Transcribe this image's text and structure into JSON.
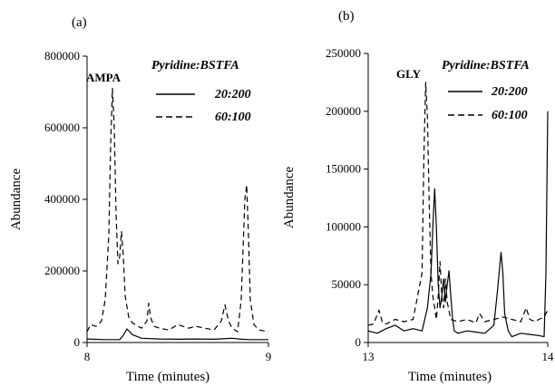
{
  "chart_data": [
    {
      "type": "line",
      "panel_label": "(a)",
      "xlabel": "Time (minutes)",
      "ylabel": "Abundance",
      "xlim": [
        8,
        9
      ],
      "ylim": [
        0,
        800000
      ],
      "x_ticks": [
        "8",
        "9"
      ],
      "y_ticks": [
        "0",
        "200000",
        "400000",
        "600000",
        "800000"
      ],
      "annotation": "AMPA",
      "legend_title": "Pyridine:BSTFA",
      "series": [
        {
          "name": "20:200",
          "style": "solid",
          "x": [
            8.0,
            8.1,
            8.18,
            8.2,
            8.22,
            8.25,
            8.3,
            8.4,
            8.5,
            8.6,
            8.7,
            8.8,
            8.85,
            8.9,
            9.0
          ],
          "y": [
            10000,
            8000,
            8000,
            20000,
            38000,
            22000,
            12000,
            10000,
            9000,
            10000,
            9000,
            12000,
            9000,
            8000,
            8000
          ]
        },
        {
          "name": "60:100",
          "style": "dashed",
          "x": [
            8.0,
            8.02,
            8.05,
            8.08,
            8.1,
            8.12,
            8.13,
            8.14,
            8.15,
            8.16,
            8.17,
            8.18,
            8.19,
            8.2,
            8.21,
            8.23,
            8.25,
            8.3,
            8.33,
            8.34,
            8.35,
            8.37,
            8.4,
            8.45,
            8.5,
            8.53,
            8.56,
            8.6,
            8.65,
            8.7,
            8.74,
            8.76,
            8.78,
            8.8,
            8.83,
            8.85,
            8.86,
            8.87,
            8.88,
            8.89,
            8.9,
            8.92,
            8.95,
            9.0
          ],
          "y": [
            30000,
            50000,
            45000,
            60000,
            120000,
            300000,
            550000,
            710000,
            600000,
            360000,
            220000,
            240000,
            310000,
            240000,
            130000,
            70000,
            55000,
            40000,
            60000,
            110000,
            70000,
            45000,
            40000,
            35000,
            50000,
            45000,
            40000,
            45000,
            40000,
            35000,
            60000,
            105000,
            60000,
            40000,
            30000,
            120000,
            260000,
            400000,
            440000,
            300000,
            120000,
            50000,
            35000,
            30000
          ]
        }
      ]
    },
    {
      "type": "line",
      "panel_label": "(b)",
      "xlabel": "Time (minutes)",
      "ylabel": "Abundance",
      "xlim": [
        13,
        14
      ],
      "ylim": [
        0,
        250000
      ],
      "x_ticks": [
        "13",
        "14"
      ],
      "y_ticks": [
        "0",
        "50000",
        "100000",
        "150000",
        "200000",
        "250000"
      ],
      "annotation": "GLY",
      "legend_title": "Pyridine:BSTFA",
      "series": [
        {
          "name": "20:200",
          "style": "solid",
          "x": [
            13.0,
            13.05,
            13.1,
            13.15,
            13.2,
            13.25,
            13.3,
            13.33,
            13.35,
            13.36,
            13.37,
            13.38,
            13.39,
            13.4,
            13.41,
            13.42,
            13.43,
            13.44,
            13.45,
            13.46,
            13.47,
            13.48,
            13.5,
            13.55,
            13.6,
            13.65,
            13.7,
            13.72,
            13.74,
            13.75,
            13.76,
            13.78,
            13.8,
            13.85,
            13.9,
            13.95,
            13.98,
            13.99,
            14.0
          ],
          "y": [
            10000,
            8000,
            12000,
            15000,
            10000,
            12000,
            10000,
            30000,
            60000,
            100000,
            133000,
            100000,
            50000,
            30000,
            40000,
            55000,
            35000,
            50000,
            62000,
            40000,
            20000,
            10000,
            8000,
            10000,
            9000,
            8000,
            15000,
            45000,
            78000,
            60000,
            25000,
            10000,
            5000,
            8000,
            7000,
            6000,
            5000,
            60000,
            200000
          ]
        },
        {
          "name": "60:100",
          "style": "dashed",
          "x": [
            13.0,
            13.03,
            13.06,
            13.08,
            13.1,
            13.15,
            13.2,
            13.25,
            13.3,
            13.31,
            13.32,
            13.33,
            13.34,
            13.35,
            13.36,
            13.37,
            13.38,
            13.39,
            13.4,
            13.41,
            13.42,
            13.43,
            13.44,
            13.46,
            13.5,
            13.55,
            13.6,
            13.62,
            13.65,
            13.7,
            13.75,
            13.8,
            13.85,
            13.88,
            13.9,
            13.93,
            13.95,
            13.98,
            14.0
          ],
          "y": [
            15000,
            16000,
            28000,
            17000,
            16000,
            20000,
            18000,
            20000,
            60000,
            160000,
            225000,
            195000,
            120000,
            60000,
            40000,
            30000,
            20000,
            40000,
            70000,
            40000,
            30000,
            55000,
            35000,
            20000,
            18000,
            20000,
            17000,
            25000,
            18000,
            20000,
            22000,
            20000,
            18000,
            30000,
            20000,
            18000,
            20000,
            22000,
            28000
          ]
        }
      ]
    }
  ]
}
